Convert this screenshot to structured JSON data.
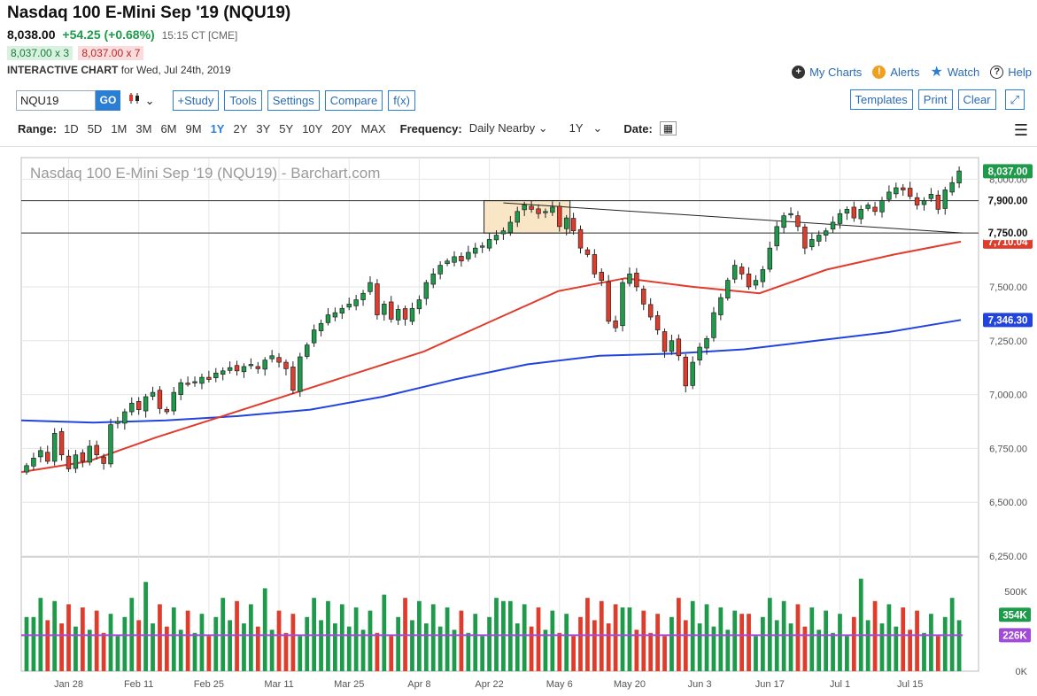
{
  "header": {
    "title": "Nasdaq 100 E-Mini Sep '19 (NQU19)",
    "last": "8,038.00",
    "change": "+54.25 (+0.68%)",
    "time": "15:15 CT [CME]",
    "bid": "8,037.00 x 3",
    "ask": "8,037.00 x 7",
    "chart_label": "INTERACTIVE CHART",
    "chart_date": "for Wed, Jul 24th, 2019"
  },
  "links": {
    "my_charts": "My Charts",
    "alerts": "Alerts",
    "watch": "Watch",
    "help": "Help"
  },
  "toolbar": {
    "symbol": "NQU19",
    "go": "GO",
    "study": "+Study",
    "tools": "Tools",
    "settings": "Settings",
    "compare": "Compare",
    "fx": "f(x)",
    "templates": "Templates",
    "print": "Print",
    "clear": "Clear"
  },
  "range": {
    "label": "Range:",
    "options": [
      "1D",
      "5D",
      "1M",
      "3M",
      "6M",
      "9M",
      "1Y",
      "2Y",
      "3Y",
      "5Y",
      "10Y",
      "20Y",
      "MAX"
    ],
    "active": "1Y",
    "frequency_label": "Frequency:",
    "frequency": "Daily Nearby",
    "period": "1Y",
    "date_label": "Date:"
  },
  "colors": {
    "up": "#1d9a4a",
    "down": "#e03c2c",
    "ma50": "#e03c2c",
    "ma200": "#2244dd",
    "vol_avg": "#a24bd6",
    "accent": "#2a7fd4"
  },
  "chart_data": {
    "type": "candlestick",
    "title": "Nasdaq 100 E-Mini Sep '19 (NQU19) - Barchart.com",
    "y_ticks": [
      "8,000.00",
      "7,750.00",
      "7,500.00",
      "7,250.00",
      "7,000.00",
      "6,750.00",
      "6,500.00",
      "6,250.00"
    ],
    "ylim": [
      6250,
      8100
    ],
    "x_ticks": [
      "Jan 28",
      "Feb 11",
      "Feb 25",
      "Mar 11",
      "Mar 25",
      "Apr 8",
      "Apr 22",
      "May 6",
      "May 20",
      "Jun 3",
      "Jun 17",
      "Jul 1",
      "Jul 15"
    ],
    "price_labels": {
      "last": "8,037.00",
      "level_high": "7,900.00",
      "level_low": "7,750.00",
      "ma50": "7,710.04",
      "ma200": "7,346.30"
    },
    "horizontal_lines": [
      7900,
      7750
    ],
    "trendline": {
      "from": {
        "x": "Apr 25",
        "y": 7890
      },
      "to": {
        "x": "Jul 24",
        "y": 7750
      }
    },
    "highlight_box": {
      "x0": "Apr 22",
      "x1": "May 3",
      "y0": 7750,
      "y1": 7900
    },
    "closes": [
      6670,
      6705,
      6740,
      6690,
      6820,
      6720,
      6655,
      6720,
      6690,
      6760,
      6720,
      6680,
      6860,
      6875,
      6920,
      6960,
      6930,
      6990,
      7010,
      6935,
      6920,
      7010,
      7055,
      7050,
      7060,
      7080,
      7070,
      7100,
      7110,
      7125,
      7110,
      7130,
      7140,
      7120,
      7160,
      7180,
      7150,
      7120,
      7020,
      7175,
      7230,
      7300,
      7330,
      7370,
      7380,
      7400,
      7420,
      7440,
      7470,
      7520,
      7370,
      7420,
      7350,
      7395,
      7350,
      7400,
      7440,
      7520,
      7560,
      7600,
      7620,
      7640,
      7620,
      7660,
      7680,
      7690,
      7720,
      7740,
      7760,
      7800,
      7850,
      7880,
      7860,
      7840,
      7850,
      7870,
      7780,
      7820,
      7760,
      7680,
      7650,
      7560,
      7530,
      7340,
      7310,
      7520,
      7560,
      7500,
      7420,
      7360,
      7300,
      7200,
      7250,
      7180,
      7040,
      7150,
      7220,
      7260,
      7380,
      7450,
      7530,
      7600,
      7560,
      7500,
      7530,
      7580,
      7680,
      7780,
      7830,
      7840,
      7780,
      7680,
      7720,
      7740,
      7760,
      7800,
      7840,
      7860,
      7820,
      7860,
      7880,
      7850,
      7900,
      7940,
      7960,
      7950,
      7920,
      7880,
      7900,
      7930,
      7860,
      7950,
      7984,
      8038
    ],
    "series": [
      {
        "name": "MA 50",
        "from": 6640,
        "to": 7710.04,
        "points": [
          6640,
          6690,
          6800,
          6900,
          7000,
          7100,
          7200,
          7340,
          7480,
          7540,
          7500,
          7470,
          7580,
          7650,
          7710.04
        ]
      },
      {
        "name": "MA 200",
        "from": 6880,
        "to": 7346.3,
        "points": [
          6880,
          6870,
          6880,
          6900,
          6930,
          6990,
          7070,
          7140,
          7180,
          7190,
          7210,
          7250,
          7290,
          7346.3
        ]
      }
    ],
    "volume": {
      "y_ticks": [
        "500K",
        "0K"
      ],
      "last": "354K",
      "avg": "226K",
      "ylim": [
        0,
        700000
      ]
    }
  }
}
